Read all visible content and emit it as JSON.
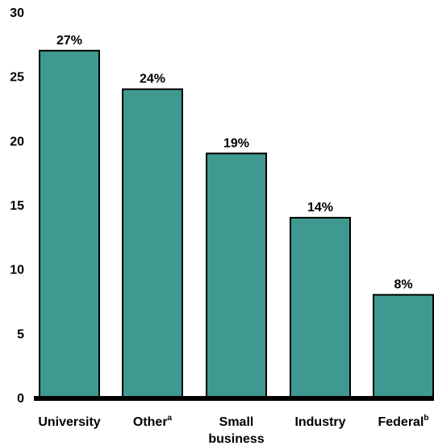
{
  "chart_data": {
    "type": "bar",
    "categories": [
      {
        "label": "University",
        "sup": ""
      },
      {
        "label": "Other",
        "sup": "a"
      },
      {
        "label": "Small business",
        "sup": ""
      },
      {
        "label": "Industry",
        "sup": ""
      },
      {
        "label": "Federal",
        "sup": "b"
      }
    ],
    "values": [
      27,
      24,
      19,
      14,
      8
    ],
    "data_labels": [
      "27%",
      "24%",
      "19%",
      "14%",
      "8%"
    ],
    "yticks": [
      0,
      5,
      10,
      15,
      20,
      25,
      30
    ],
    "ylim": [
      0,
      30
    ],
    "title": "",
    "xlabel": "",
    "ylabel": "",
    "grid": false,
    "colors": {
      "bar": "#3f9990",
      "bar_stroke": "#000000",
      "axis": "#000000"
    }
  }
}
